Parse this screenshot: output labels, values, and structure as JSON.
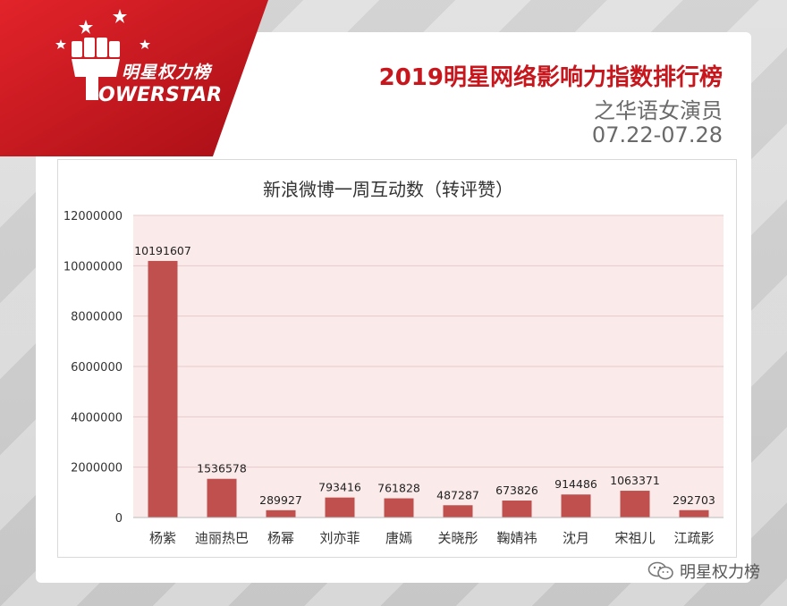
{
  "logo": {
    "cn_text": "明星权力榜",
    "brand_text": "OWERSTAR"
  },
  "header": {
    "title": "2019明星网络影响力指数排行榜",
    "subtitle": "之华语女演员",
    "date_range": "07.22-07.28"
  },
  "footer": {
    "account_name": "明星权力榜",
    "icon": "wechat-icon"
  },
  "colors": {
    "bar": "#c0504d",
    "brand_red": "#c8161d",
    "plot_bg": "#fbeaea"
  },
  "chart_data": {
    "type": "bar",
    "title": "新浪微博一周互动数（转评赞）",
    "categories": [
      "杨紫",
      "迪丽热巴",
      "杨幂",
      "刘亦菲",
      "唐嫣",
      "关晓彤",
      "鞠婧祎",
      "沈月",
      "宋祖儿",
      "江疏影"
    ],
    "values": [
      10191607,
      1536578,
      289927,
      793416,
      761828,
      487287,
      673826,
      914486,
      1063371,
      292703
    ],
    "value_labels": [
      "10191607",
      "1536578",
      "289927",
      "793416",
      "761828",
      "487287",
      "673826",
      "914486",
      "1063371",
      "292703"
    ],
    "yticks": [
      0,
      2000000,
      4000000,
      6000000,
      8000000,
      10000000,
      12000000
    ],
    "ytick_labels": [
      "0",
      "2000000",
      "4000000",
      "6000000",
      "8000000",
      "10000000",
      "12000000"
    ],
    "ylim": [
      0,
      12000000
    ],
    "xlabel": "",
    "ylabel": "",
    "grid": true,
    "legend": "none"
  }
}
